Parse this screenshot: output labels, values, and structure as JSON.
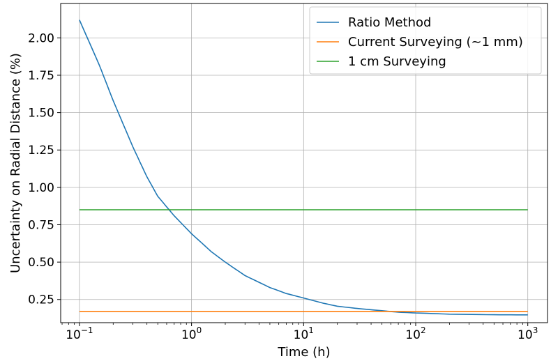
{
  "chart_data": {
    "type": "line",
    "title": "",
    "xlabel": "Time (h)",
    "ylabel": "Uncertainty on Radial Distance (%)",
    "xscale": "log",
    "xlim": [
      0.068,
      1500
    ],
    "ylim": [
      0.095,
      2.23
    ],
    "grid": true,
    "legend_position": "top-right",
    "x_ticks": [
      {
        "value": 0.1,
        "base": "10",
        "exp": "−1"
      },
      {
        "value": 1,
        "base": "10",
        "exp": "0"
      },
      {
        "value": 10,
        "base": "10",
        "exp": "1"
      },
      {
        "value": 100,
        "base": "10",
        "exp": "2"
      },
      {
        "value": 1000,
        "base": "10",
        "exp": "3"
      }
    ],
    "y_ticks": [
      {
        "value": 0.25,
        "label": "0.25"
      },
      {
        "value": 0.5,
        "label": "0.50"
      },
      {
        "value": 0.75,
        "label": "0.75"
      },
      {
        "value": 1.0,
        "label": "1.00"
      },
      {
        "value": 1.25,
        "label": "1.25"
      },
      {
        "value": 1.5,
        "label": "1.50"
      },
      {
        "value": 1.75,
        "label": "1.75"
      },
      {
        "value": 2.0,
        "label": "2.00"
      }
    ],
    "series": [
      {
        "name": "Ratio Method",
        "color": "#1f77b4",
        "x": [
          0.1,
          0.15,
          0.2,
          0.3,
          0.4,
          0.5,
          0.7,
          1,
          1.5,
          2,
          3,
          5,
          7,
          10,
          15,
          20,
          30,
          50,
          70,
          100,
          200,
          500,
          1000
        ],
        "y": [
          2.12,
          1.82,
          1.58,
          1.27,
          1.07,
          0.94,
          0.81,
          0.69,
          0.57,
          0.5,
          0.41,
          0.33,
          0.29,
          0.26,
          0.225,
          0.205,
          0.19,
          0.175,
          0.165,
          0.16,
          0.152,
          0.148,
          0.147
        ]
      },
      {
        "name": "Current Surveying (~1 mm)",
        "color": "#ff7f0e",
        "x": [
          0.1,
          1000
        ],
        "y": [
          0.17,
          0.17
        ]
      },
      {
        "name": "1 cm Surveying",
        "color": "#2ca02c",
        "x": [
          0.1,
          1000
        ],
        "y": [
          0.85,
          0.85
        ]
      }
    ]
  }
}
